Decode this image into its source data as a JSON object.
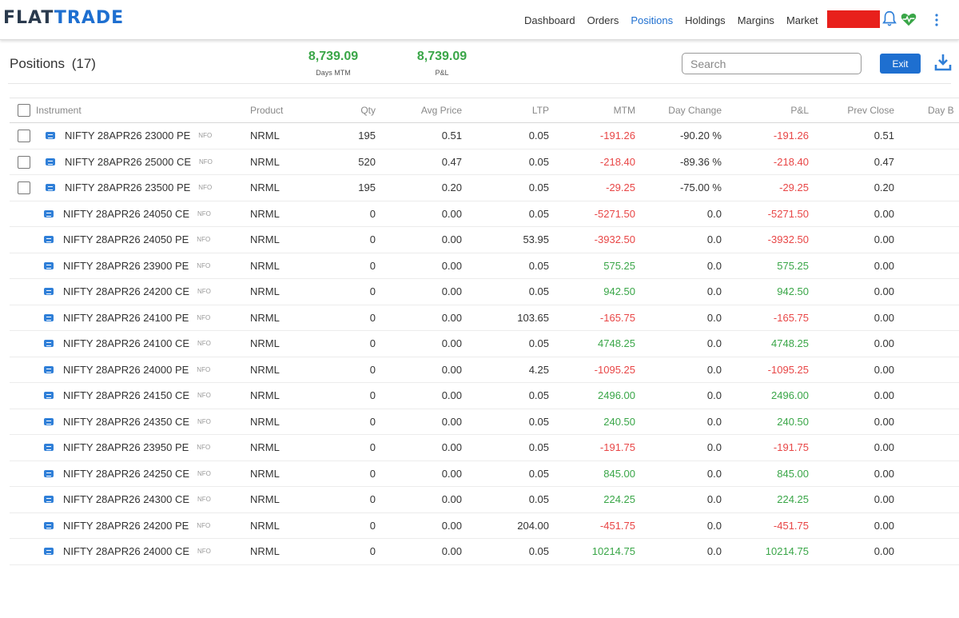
{
  "header": {
    "logo_left": "FLAT",
    "logo_right": "TRADE",
    "nav": [
      {
        "label": "Dashboard",
        "active": false
      },
      {
        "label": "Orders",
        "active": false
      },
      {
        "label": "Positions",
        "active": true
      },
      {
        "label": "Holdings",
        "active": false
      },
      {
        "label": "Margins",
        "active": false
      },
      {
        "label": "Market",
        "active": false
      }
    ],
    "icons": [
      "bell-icon",
      "heartbeat-icon",
      "kebab-menu-icon"
    ],
    "accent_color": "#1e6fd0"
  },
  "summary": {
    "title": "Positions",
    "count": "(17)",
    "days_mtm_value": "8,739.09",
    "days_mtm_label": "Days MTM",
    "pnl_value": "8,739.09",
    "pnl_label": "P&L",
    "search_placeholder": "Search",
    "exit_label": "Exit"
  },
  "columns": {
    "instrument": "Instrument",
    "product": "Product",
    "qty": "Qty",
    "avg": "Avg Price",
    "ltp": "LTP",
    "mtm": "MTM",
    "day_change": "Day Change",
    "pnl": "P&L",
    "prev_close": "Prev Close",
    "day_b": "Day B"
  },
  "rows": [
    {
      "checkbox": true,
      "instrument": "NIFTY 28APR26 23000 PE",
      "exch": "NFO",
      "product": "NRML",
      "qty": "195",
      "avg": "0.51",
      "ltp": "0.05",
      "mtm": "-191.26",
      "day_change": "-90.20 %",
      "pnl": "-191.26",
      "prev": "0.51"
    },
    {
      "checkbox": true,
      "instrument": "NIFTY 28APR26 25000 CE",
      "exch": "NFO",
      "product": "NRML",
      "qty": "520",
      "avg": "0.47",
      "ltp": "0.05",
      "mtm": "-218.40",
      "day_change": "-89.36 %",
      "pnl": "-218.40",
      "prev": "0.47"
    },
    {
      "checkbox": true,
      "instrument": "NIFTY 28APR26 23500 PE",
      "exch": "NFO",
      "product": "NRML",
      "qty": "195",
      "avg": "0.20",
      "ltp": "0.05",
      "mtm": "-29.25",
      "day_change": "-75.00 %",
      "pnl": "-29.25",
      "prev": "0.20"
    },
    {
      "checkbox": false,
      "instrument": "NIFTY 28APR26 24050 CE",
      "exch": "NFO",
      "product": "NRML",
      "qty": "0",
      "avg": "0.00",
      "ltp": "0.05",
      "mtm": "-5271.50",
      "day_change": "0.0",
      "pnl": "-5271.50",
      "prev": "0.00"
    },
    {
      "checkbox": false,
      "instrument": "NIFTY 28APR26 24050 PE",
      "exch": "NFO",
      "product": "NRML",
      "qty": "0",
      "avg": "0.00",
      "ltp": "53.95",
      "mtm": "-3932.50",
      "day_change": "0.0",
      "pnl": "-3932.50",
      "prev": "0.00"
    },
    {
      "checkbox": false,
      "instrument": "NIFTY 28APR26 23900 PE",
      "exch": "NFO",
      "product": "NRML",
      "qty": "0",
      "avg": "0.00",
      "ltp": "0.05",
      "mtm": "575.25",
      "day_change": "0.0",
      "pnl": "575.25",
      "prev": "0.00"
    },
    {
      "checkbox": false,
      "instrument": "NIFTY 28APR26 24200 CE",
      "exch": "NFO",
      "product": "NRML",
      "qty": "0",
      "avg": "0.00",
      "ltp": "0.05",
      "mtm": "942.50",
      "day_change": "0.0",
      "pnl": "942.50",
      "prev": "0.00"
    },
    {
      "checkbox": false,
      "instrument": "NIFTY 28APR26 24100 PE",
      "exch": "NFO",
      "product": "NRML",
      "qty": "0",
      "avg": "0.00",
      "ltp": "103.65",
      "mtm": "-165.75",
      "day_change": "0.0",
      "pnl": "-165.75",
      "prev": "0.00"
    },
    {
      "checkbox": false,
      "instrument": "NIFTY 28APR26 24100 CE",
      "exch": "NFO",
      "product": "NRML",
      "qty": "0",
      "avg": "0.00",
      "ltp": "0.05",
      "mtm": "4748.25",
      "day_change": "0.0",
      "pnl": "4748.25",
      "prev": "0.00"
    },
    {
      "checkbox": false,
      "instrument": "NIFTY 28APR26 24000 PE",
      "exch": "NFO",
      "product": "NRML",
      "qty": "0",
      "avg": "0.00",
      "ltp": "4.25",
      "mtm": "-1095.25",
      "day_change": "0.0",
      "pnl": "-1095.25",
      "prev": "0.00"
    },
    {
      "checkbox": false,
      "instrument": "NIFTY 28APR26 24150 CE",
      "exch": "NFO",
      "product": "NRML",
      "qty": "0",
      "avg": "0.00",
      "ltp": "0.05",
      "mtm": "2496.00",
      "day_change": "0.0",
      "pnl": "2496.00",
      "prev": "0.00"
    },
    {
      "checkbox": false,
      "instrument": "NIFTY 28APR26 24350 CE",
      "exch": "NFO",
      "product": "NRML",
      "qty": "0",
      "avg": "0.00",
      "ltp": "0.05",
      "mtm": "240.50",
      "day_change": "0.0",
      "pnl": "240.50",
      "prev": "0.00"
    },
    {
      "checkbox": false,
      "instrument": "NIFTY 28APR26 23950 PE",
      "exch": "NFO",
      "product": "NRML",
      "qty": "0",
      "avg": "0.00",
      "ltp": "0.05",
      "mtm": "-191.75",
      "day_change": "0.0",
      "pnl": "-191.75",
      "prev": "0.00"
    },
    {
      "checkbox": false,
      "instrument": "NIFTY 28APR26 24250 CE",
      "exch": "NFO",
      "product": "NRML",
      "qty": "0",
      "avg": "0.00",
      "ltp": "0.05",
      "mtm": "845.00",
      "day_change": "0.0",
      "pnl": "845.00",
      "prev": "0.00"
    },
    {
      "checkbox": false,
      "instrument": "NIFTY 28APR26 24300 CE",
      "exch": "NFO",
      "product": "NRML",
      "qty": "0",
      "avg": "0.00",
      "ltp": "0.05",
      "mtm": "224.25",
      "day_change": "0.0",
      "pnl": "224.25",
      "prev": "0.00"
    },
    {
      "checkbox": false,
      "instrument": "NIFTY 28APR26 24200 PE",
      "exch": "NFO",
      "product": "NRML",
      "qty": "0",
      "avg": "0.00",
      "ltp": "204.00",
      "mtm": "-451.75",
      "day_change": "0.0",
      "pnl": "-451.75",
      "prev": "0.00"
    },
    {
      "checkbox": false,
      "instrument": "NIFTY 28APR26 24000 CE",
      "exch": "NFO",
      "product": "NRML",
      "qty": "0",
      "avg": "0.00",
      "ltp": "0.05",
      "mtm": "10214.75",
      "day_change": "0.0",
      "pnl": "10214.75",
      "prev": "0.00"
    }
  ],
  "colors": {
    "positive": "#3aa648",
    "negative": "#e84646",
    "exit_button": "#1e6fd0"
  }
}
